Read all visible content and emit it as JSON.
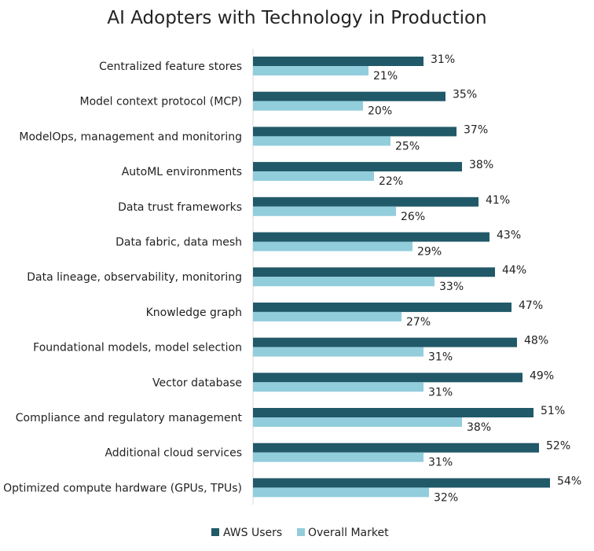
{
  "chart_data": {
    "type": "bar",
    "orientation": "horizontal",
    "title": "AI Adopters with Technology in Production",
    "xlabel": "",
    "ylabel": "",
    "xlim": [
      0,
      54
    ],
    "grid": false,
    "legend_position": "bottom",
    "value_suffix": "%",
    "categories": [
      "Centralized feature stores",
      "Model context protocol (MCP)",
      "ModelOps, management and monitoring",
      "AutoML environments",
      "Data trust frameworks",
      "Data fabric, data mesh",
      "Data lineage, observability, monitoring",
      "Knowledge graph",
      "Foundational models, model selection",
      "Vector database",
      "Compliance and regulatory management",
      "Additional cloud services",
      "Optimized compute hardware (GPUs, TPUs)"
    ],
    "series": [
      {
        "name": "AWS Users",
        "color": "#215968",
        "values": [
          31,
          35,
          37,
          38,
          41,
          43,
          44,
          47,
          48,
          49,
          51,
          52,
          54
        ]
      },
      {
        "name": "Overall Market",
        "color": "#92CDDC",
        "values": [
          21,
          20,
          25,
          22,
          26,
          29,
          33,
          27,
          31,
          31,
          38,
          31,
          32
        ]
      }
    ]
  }
}
